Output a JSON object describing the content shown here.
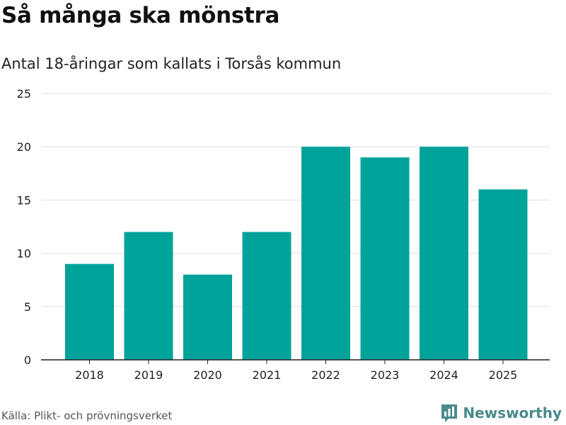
{
  "header": {
    "title": "Så många ska mönstra",
    "subtitle": "Antal 18-åringar som kallats i Torsås kommun"
  },
  "footer": {
    "source": "Källa: Plikt- och prövningsverket",
    "brand": "Newsworthy"
  },
  "colors": {
    "bar": "#00a39a",
    "grid": "#dddddd",
    "axis": "#222222",
    "brand": "#4a8a8a"
  },
  "icons": {
    "brand_logo": "chart-logo-icon"
  },
  "chart_data": {
    "type": "bar",
    "categories": [
      "2018",
      "2019",
      "2020",
      "2021",
      "2022",
      "2023",
      "2024",
      "2025"
    ],
    "values": [
      9,
      12,
      8,
      12,
      20,
      19,
      20,
      16
    ],
    "title": "Så många ska mönstra",
    "subtitle": "Antal 18-åringar som kallats i Torsås kommun",
    "xlabel": "",
    "ylabel": "",
    "ylim": [
      0,
      25
    ],
    "yticks": [
      0,
      5,
      10,
      15,
      20,
      25
    ],
    "grid": true,
    "legend": "none"
  }
}
